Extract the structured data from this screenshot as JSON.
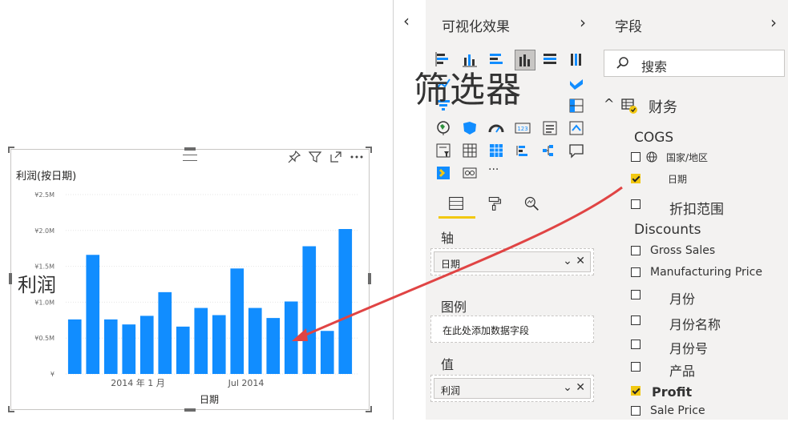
{
  "visual": {
    "title": "利润(按日期)",
    "y_axis_label": "利润",
    "x_axis_label": "日期"
  },
  "overlays": {
    "filters": "筛选器",
    "profit": "利润"
  },
  "chart_data": {
    "type": "bar",
    "title": "利润(按日期)",
    "xlabel": "日期",
    "ylabel": "利润",
    "yticks": [
      "¥",
      "¥0.5M",
      "¥1.0M",
      "¥1.5M",
      "¥2.0M",
      "¥2.5M"
    ],
    "ylim": [
      0,
      2.5
    ],
    "xticks": [
      {
        "label": "2014 年 1 月",
        "index": 3.5
      },
      {
        "label": "Jul 2014",
        "index": 9.5
      }
    ],
    "values": [
      0.76,
      1.66,
      0.76,
      0.69,
      0.81,
      1.14,
      0.66,
      0.92,
      0.82,
      1.47,
      0.92,
      0.78,
      1.01,
      1.78,
      0.6,
      2.02
    ],
    "bar_color": "#118dff"
  },
  "collapse_button": "‹",
  "visualizations": {
    "title": "可视化效果",
    "chevron": "›",
    "more": "···",
    "tabs": [
      "fields",
      "format",
      "analytics"
    ],
    "wells": {
      "axis_label": "轴",
      "axis_value": "日期",
      "legend_label": "图例",
      "legend_placeholder": "在此处添加数据字段",
      "values_label": "值",
      "values_value": "利润"
    }
  },
  "fields": {
    "title": "字段",
    "chevron": "›",
    "search_placeholder": "搜索",
    "table_name": "财务",
    "items": [
      {
        "label": "COGS",
        "checked": false,
        "size": 17,
        "nocb": true
      },
      {
        "label": "国家/地区",
        "checked": false,
        "size": 12,
        "globe": true
      },
      {
        "label": "日期",
        "checked": true,
        "size": 12
      },
      {
        "label": "折扣范围",
        "checked": false,
        "size": 17
      },
      {
        "label": "Discounts",
        "checked": false,
        "size": 17,
        "nocb": true
      },
      {
        "label": "Gross Sales",
        "checked": false,
        "size": 14
      },
      {
        "label": "Manufacturing Price",
        "checked": false,
        "size": 14
      },
      {
        "label": "月份",
        "checked": false,
        "size": 16
      },
      {
        "label": "月份名称",
        "checked": false,
        "size": 16
      },
      {
        "label": "月份号",
        "checked": false,
        "size": 16
      },
      {
        "label": "产品",
        "checked": false,
        "size": 16
      },
      {
        "label": "Profit",
        "checked": true,
        "size": 16
      },
      {
        "label": "Sale Price",
        "checked": false,
        "size": 14
      }
    ]
  },
  "colors": {
    "accent": "#f2c811",
    "bar": "#118dff",
    "arrow": "#e04444"
  }
}
